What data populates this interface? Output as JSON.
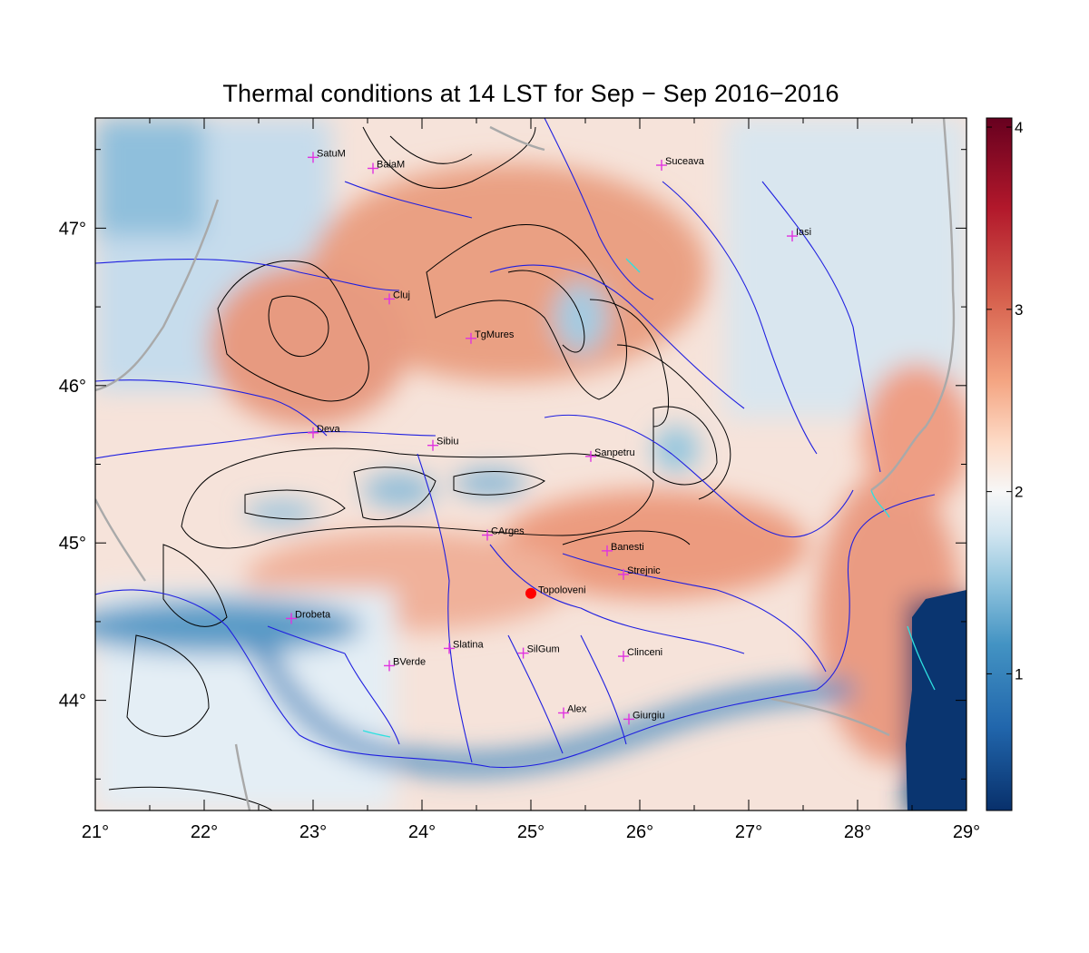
{
  "title": "Thermal conditions at 14 LST for Sep − Sep  2016−2016",
  "map": {
    "x_ticks": [
      "21°",
      "22°",
      "23°",
      "24°",
      "25°",
      "26°",
      "27°",
      "28°",
      "29°"
    ],
    "y_ticks": [
      "44°",
      "45°",
      "46°",
      "47°"
    ],
    "lon_range": [
      21,
      29
    ],
    "lat_range": [
      43.3,
      47.7
    ],
    "x_tick_values": [
      21,
      22,
      23,
      24,
      25,
      26,
      27,
      28,
      29
    ],
    "y_tick_values": [
      44,
      45,
      46,
      47
    ]
  },
  "colorbar": {
    "ticks": [
      "1",
      "2",
      "3",
      "4"
    ],
    "tick_values": [
      1,
      2,
      3,
      4
    ],
    "range": [
      0.25,
      4.05
    ],
    "colors": [
      "#08306b",
      "#2166ac",
      "#4393c3",
      "#92c5de",
      "#d1e5f0",
      "#f7f7f7",
      "#fddbc7",
      "#f4a582",
      "#d6604d",
      "#b2182b",
      "#67001f"
    ]
  },
  "stations": [
    {
      "name": "SatuM",
      "lon": 23.0,
      "lat": 47.45
    },
    {
      "name": "BaiaM",
      "lon": 23.55,
      "lat": 47.38
    },
    {
      "name": "Suceava",
      "lon": 26.2,
      "lat": 47.4
    },
    {
      "name": "Iasi",
      "lon": 27.4,
      "lat": 46.95
    },
    {
      "name": "Cluj",
      "lon": 23.7,
      "lat": 46.55
    },
    {
      "name": "TgMures",
      "lon": 24.45,
      "lat": 46.3
    },
    {
      "name": "Deva",
      "lon": 23.0,
      "lat": 45.7
    },
    {
      "name": "Sibiu",
      "lon": 24.1,
      "lat": 45.62
    },
    {
      "name": "Sanpetru",
      "lon": 25.55,
      "lat": 45.55
    },
    {
      "name": "CArges",
      "lon": 24.6,
      "lat": 45.05
    },
    {
      "name": "Banesti",
      "lon": 25.7,
      "lat": 44.95
    },
    {
      "name": "Strejnic",
      "lon": 25.85,
      "lat": 44.8
    },
    {
      "name": "Drobeta",
      "lon": 22.8,
      "lat": 44.52
    },
    {
      "name": "Slatina",
      "lon": 24.25,
      "lat": 44.33
    },
    {
      "name": "SilGum",
      "lon": 24.93,
      "lat": 44.3
    },
    {
      "name": "Clinceni",
      "lon": 25.85,
      "lat": 44.28
    },
    {
      "name": "BVerde",
      "lon": 23.7,
      "lat": 44.22
    },
    {
      "name": "Alex",
      "lon": 25.3,
      "lat": 43.92
    },
    {
      "name": "Giurgiu",
      "lon": 25.9,
      "lat": 43.88
    }
  ],
  "marker": {
    "name": "Topoloveni",
    "lon": 25.0,
    "lat": 44.68
  }
}
